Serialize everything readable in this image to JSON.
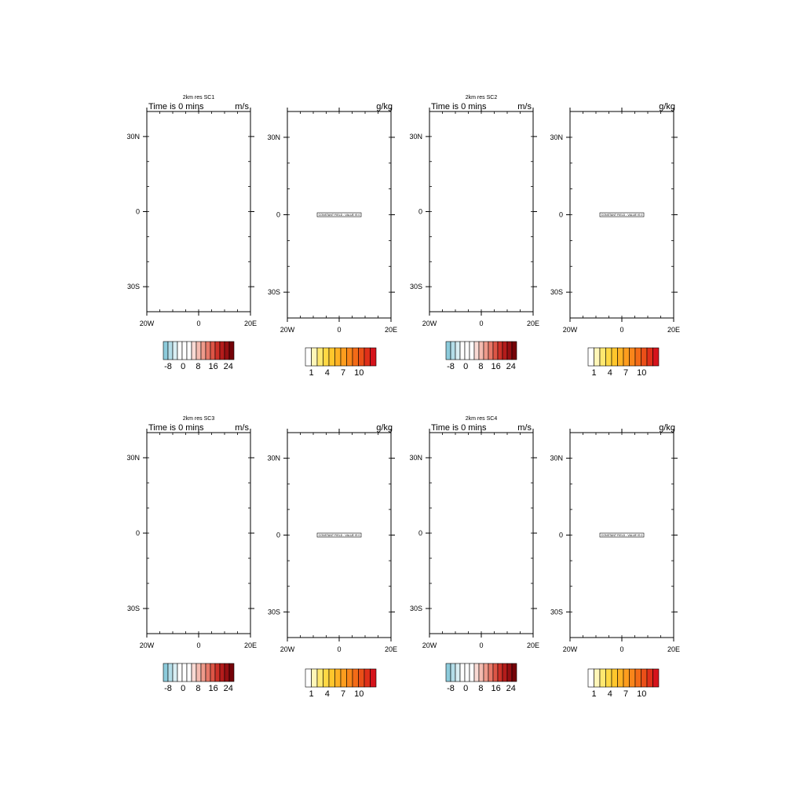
{
  "figure": {
    "panels": [
      {
        "title": "2km res SC1",
        "time_label": "Time is 0 mins",
        "wind_units": "m/s",
        "moist_units": "g/kg",
        "constant_field_label": "CONSTANT FIELD - VALUE IS 0"
      },
      {
        "title": "2km res SC2",
        "time_label": "Time is 0 mins",
        "wind_units": "m/s",
        "moist_units": "g/kg",
        "constant_field_label": "CONSTANT FIELD - VALUE IS 0"
      },
      {
        "title": "2km res SC3",
        "time_label": "Time is 0 mins",
        "wind_units": "m/s",
        "moist_units": "g/kg",
        "constant_field_label": "CONSTANT FIELD - VALUE IS 0"
      },
      {
        "title": "2km res SC4",
        "time_label": "Time is 0 mins",
        "wind_units": "m/s",
        "moist_units": "g/kg",
        "constant_field_label": "CONSTANT FIELD - VALUE IS 0"
      }
    ]
  },
  "chart_data": {
    "type": "heatmap",
    "field_value": 0,
    "x_range_deg": [
      -20,
      20
    ],
    "y_range_deg": [
      -40,
      40
    ],
    "x_ticks": [
      {
        "value": -20,
        "label": "20W"
      },
      {
        "value": 0,
        "label": "0"
      },
      {
        "value": 20,
        "label": "20E"
      }
    ],
    "y_ticks": [
      {
        "value": 30,
        "label": "30N"
      },
      {
        "value": 0,
        "label": "0"
      },
      {
        "value": -30,
        "label": "30S"
      }
    ],
    "colorbars": {
      "wind": {
        "colors": [
          "#8ccbdb",
          "#b3dde8",
          "#d8eef3",
          "#ffffff",
          "#ffffff",
          "#ffffff",
          "#f9dad4",
          "#f4bbb0",
          "#ee9a8b",
          "#e77868",
          "#dc5546",
          "#cc3128",
          "#b41c1b",
          "#960f12",
          "#750208"
        ],
        "labels": [
          "-8",
          "0",
          "8",
          "16",
          "24"
        ]
      },
      "moisture": {
        "colors": [
          "#ffffff",
          "#fff6b8",
          "#ffe870",
          "#ffd844",
          "#ffc62c",
          "#ffb224",
          "#fd9d1e",
          "#f9851a",
          "#f36b17",
          "#ea4f18",
          "#df3019",
          "#d5131b"
        ],
        "labels": [
          "1",
          "4",
          "7",
          "10"
        ]
      }
    }
  }
}
